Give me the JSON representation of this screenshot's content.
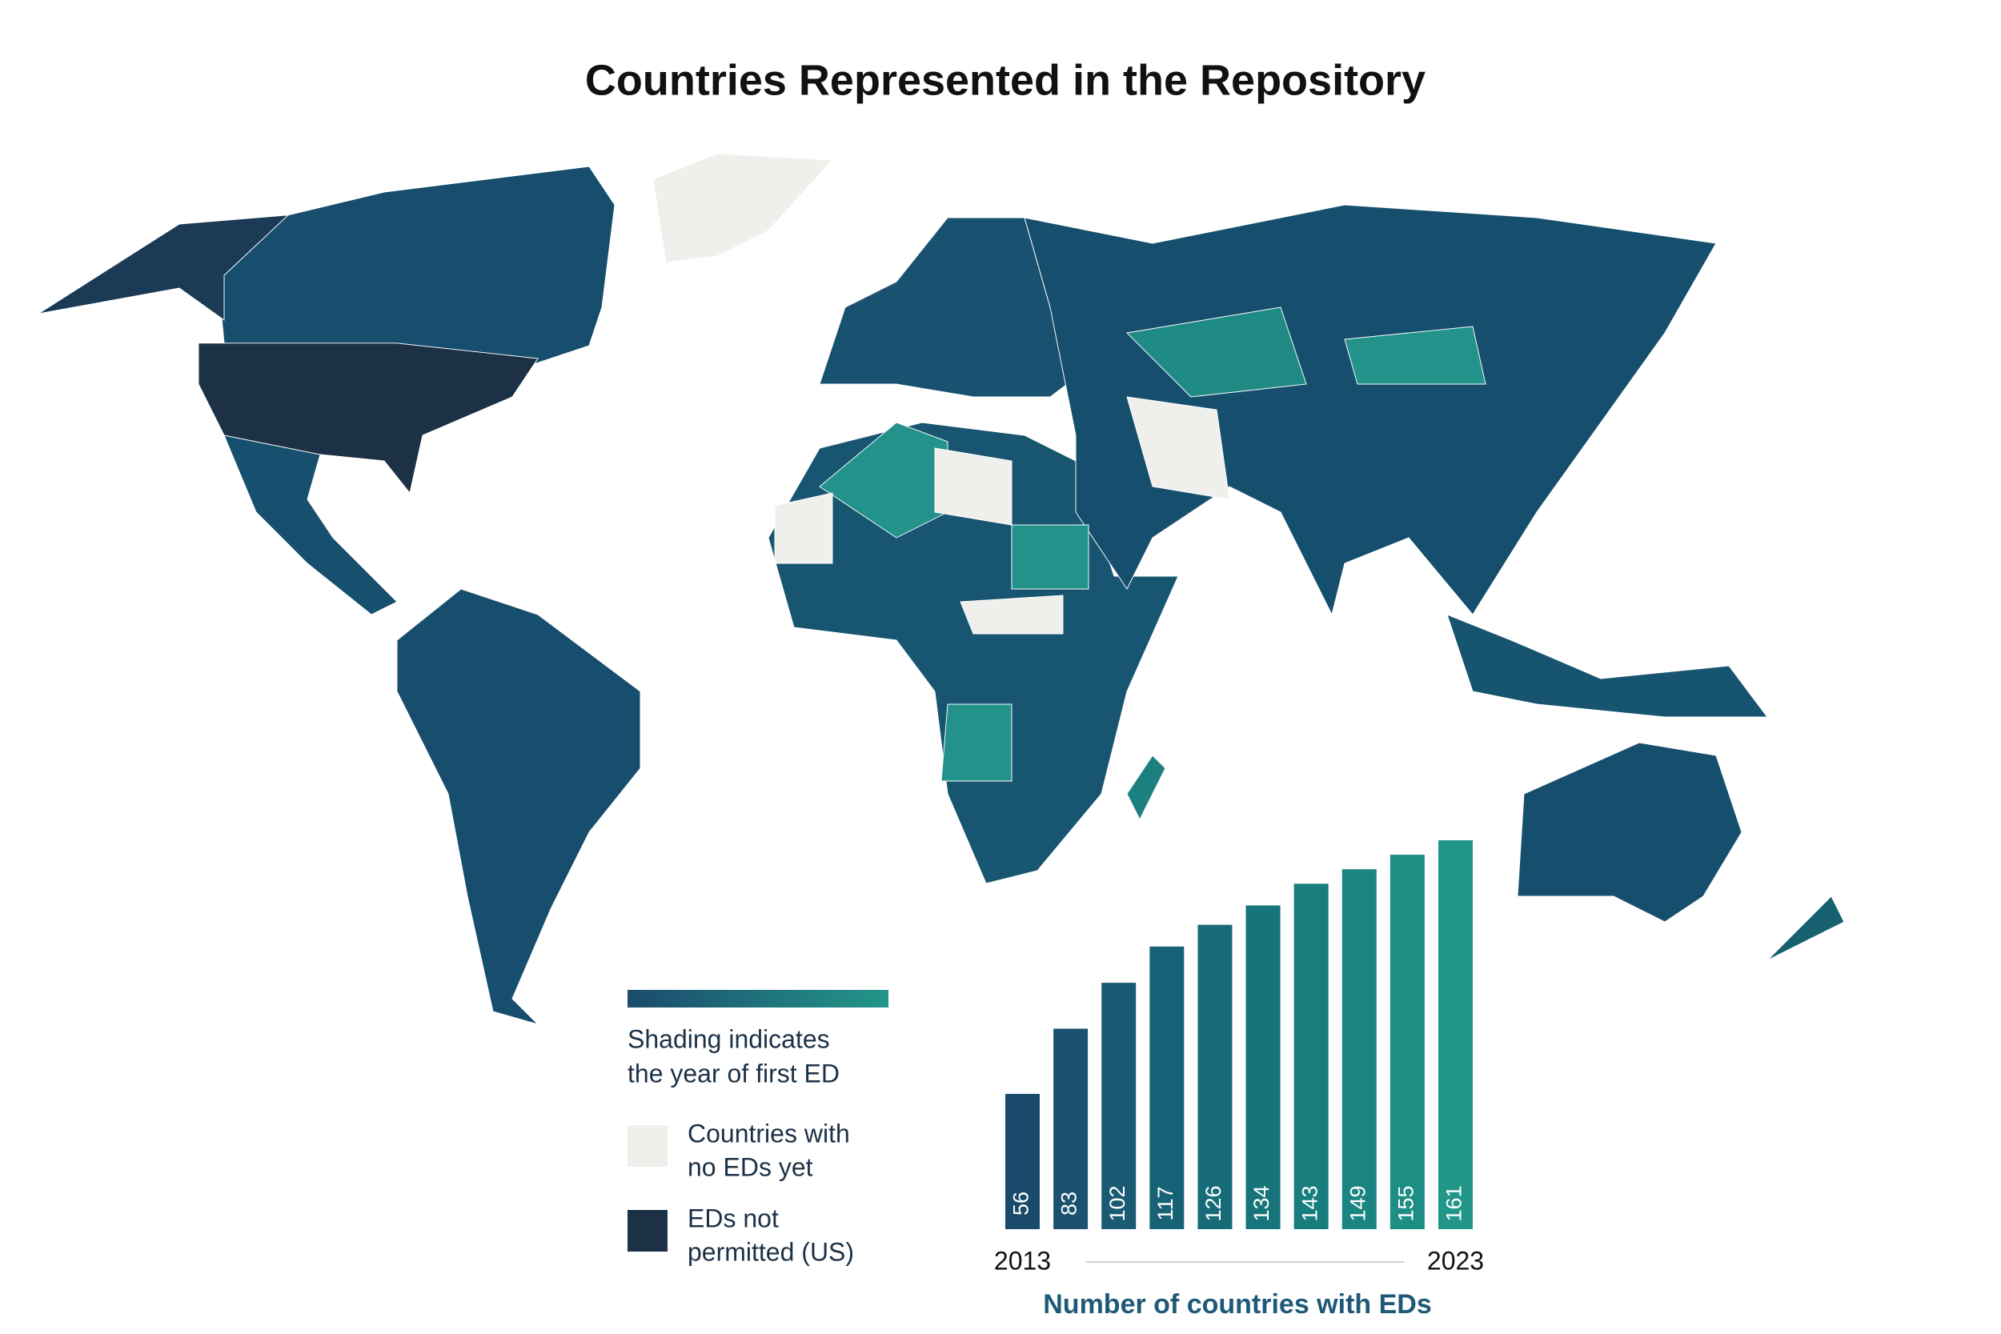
{
  "chart_data": {
    "type": "bar",
    "title": "Countries Represented in the Repository",
    "shading_note": [
      "Shading indicates",
      "the year of first ED"
    ],
    "legend": [
      {
        "label": [
          "Countries with",
          "no EDs yet"
        ],
        "color": "#efefeb"
      },
      {
        "label": [
          "EDs not",
          "permitted (US)"
        ],
        "color": "#1c3146"
      }
    ],
    "gradient": [
      "#1b4b6c",
      "#23968a"
    ],
    "categories": [
      "2013",
      null,
      null,
      null,
      null,
      null,
      null,
      null,
      null,
      "2023"
    ],
    "values": [
      56,
      83,
      102,
      117,
      126,
      134,
      143,
      149,
      155,
      161
    ],
    "colors": [
      "#1a4a6b",
      "#1a526f",
      "#1a5a73",
      "#186277",
      "#176b78",
      "#16747a",
      "#177d7d",
      "#1a8581",
      "#1e8e85",
      "#23968a"
    ],
    "xlabel": "Number of countries with EDs"
  }
}
